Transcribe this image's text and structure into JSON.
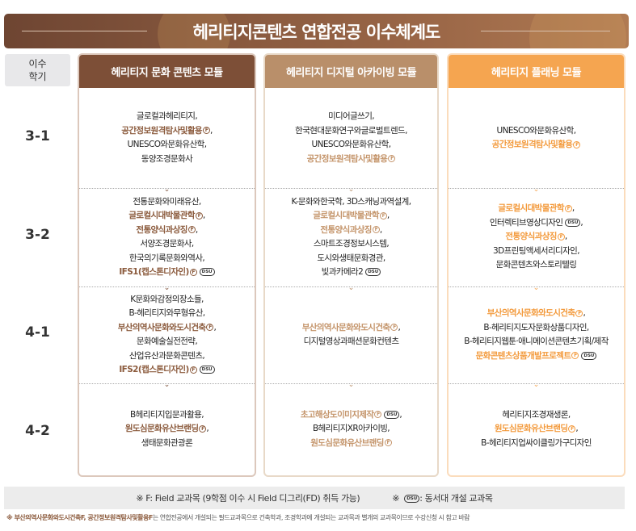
{
  "title": "헤리티지콘텐츠 연합전공 이수체계도",
  "semester_header": [
    "이수",
    "학기"
  ],
  "semesters": [
    "3-1",
    "3-2",
    "4-1",
    "4-2"
  ],
  "icons": {
    "field": "F",
    "dsu": "DSU"
  },
  "colors": {
    "col1": "#7d4f37",
    "col1_text": "#8b5a3c",
    "col2": "#b98f6a",
    "col2_text": "#c4946a",
    "col3": "#f5a550",
    "col3_text": "#f39a3c"
  },
  "modules": [
    {
      "label": "헤리티지 문화 콘텐츠 모듈",
      "cells": [
        [
          {
            "t": "글로컬과헤리티지,"
          },
          {
            "t": "공간정보원격탐사및활용",
            "h": true,
            "f": true,
            "s": ","
          },
          {
            "t": "UNESCO와문화유산학,"
          },
          {
            "t": "동양조경문화사"
          }
        ],
        [
          {
            "t": "전통문화와미래유산,"
          },
          {
            "t": "글로컬시대박물관학",
            "h": true,
            "f": true,
            "s": ","
          },
          {
            "t": "전통양식과상징",
            "h": true,
            "f": true,
            "s": ","
          },
          {
            "t": "서양조경문화사,"
          },
          {
            "t": "한국의기록문화와역사,"
          },
          {
            "t": "IFS1(캡스톤디자인)",
            "h": true,
            "f": true,
            "d": true
          }
        ],
        [
          {
            "t": "K문화와감정의장소들,"
          },
          {
            "t": "B-헤리티지와무형유산,"
          },
          {
            "t": "부산의역사문화와도시건축",
            "h": true,
            "f": true,
            "s": ","
          },
          {
            "t": "문화예술실전전략,"
          },
          {
            "t": "산업유산과문화콘텐츠,"
          },
          {
            "t": "IFS2(캡스톤디자인)",
            "h": true,
            "f": true,
            "d": true
          }
        ],
        [
          {
            "t": "B헤리티지입문과활용,"
          },
          {
            "t": "원도심문화유산브랜딩",
            "h": true,
            "f": true,
            "s": ","
          },
          {
            "t": "생태문화관광론"
          }
        ]
      ]
    },
    {
      "label": "헤리티지 디지털 아카이빙 모듈",
      "cells": [
        [
          {
            "t": "미디어글쓰기,"
          },
          {
            "t": "한국현대문화연구와글로벌트렌드,"
          },
          {
            "t": "UNESCO와문화유산학,"
          },
          {
            "t": "공간정보원격탐사및활용",
            "h": true,
            "f": true
          }
        ],
        [
          {
            "t": "K-문화와한국학, 3D스캐닝과역설계,"
          },
          {
            "t": "글로컬시대박물관학",
            "h": true,
            "f": true,
            "s": ","
          },
          {
            "t": "전통양식과상징",
            "h": true,
            "f": true,
            "s": ","
          },
          {
            "t": "스마트조경정보시스템,"
          },
          {
            "t": "도시와생태문화경관,"
          },
          {
            "t": "빛과카메라2",
            "d": true
          }
        ],
        [
          {
            "t": "부산의역사문화와도시건축",
            "h": true,
            "f": true,
            "s": ","
          },
          {
            "t": "디지털영상과패션문화컨텐츠"
          }
        ],
        [
          {
            "t": "초고해상도이미지제작",
            "h": true,
            "f": true,
            "d": true,
            "s": ","
          },
          {
            "t": "B헤리티지XR아카이빙,"
          },
          {
            "t": "원도심문화유산브랜딩",
            "h": true,
            "f": true
          }
        ]
      ]
    },
    {
      "label": "헤리티지 플래닝 모듈",
      "cells": [
        [
          {
            "t": "UNESCO와문화유산학,"
          },
          {
            "t": "공간정보원격탐사및활용",
            "h": true,
            "f": true
          }
        ],
        [
          {
            "t": "글로컬시대박물관학",
            "h": true,
            "f": true,
            "s": ","
          },
          {
            "t": "인터렉티브영상디자인",
            "d": true,
            "s": ","
          },
          {
            "t": "전통양식과상징",
            "h": true,
            "f": true,
            "s": ","
          },
          {
            "t": "3D프린팅액세서리디자인,"
          },
          {
            "t": "문화콘텐츠와스토리텔링"
          }
        ],
        [
          {
            "t": "부산의역사문화와도시건축",
            "h": true,
            "f": true,
            "s": ","
          },
          {
            "t": "B-헤리티지도자문화상품디자인,"
          },
          {
            "t": "B-헤리티지웹툰·애니메이션콘텐츠기획/제작"
          },
          {
            "t": "문화콘텐츠상품개발프로젝트",
            "h": true,
            "f": true,
            "d": true
          }
        ],
        [
          {
            "t": "헤리티지조경재생론,"
          },
          {
            "t": "원도심문화유산브랜딩",
            "h": true,
            "f": true,
            "s": ","
          },
          {
            "t": "B-헤리티지업싸이클링가구디자인"
          }
        ]
      ]
    }
  ],
  "legend": {
    "field": "※ F: Field 교과목 (9학점 이수 시 Field 디그리(FD) 취득 가능)",
    "dsu_prefix": "※",
    "dsu": ": 동서대 개설 교과목"
  },
  "note": {
    "bold": "※ 부산의역사문화와도시건축F, 공간정보원격탐사및활용F",
    "rest": "는 연합전공에서 개설되는 필드교과목으로 건축학과, 조경학과에 개설되는 교과목과 별개의 교과목이므로 수강신청 시 참고 바람"
  }
}
